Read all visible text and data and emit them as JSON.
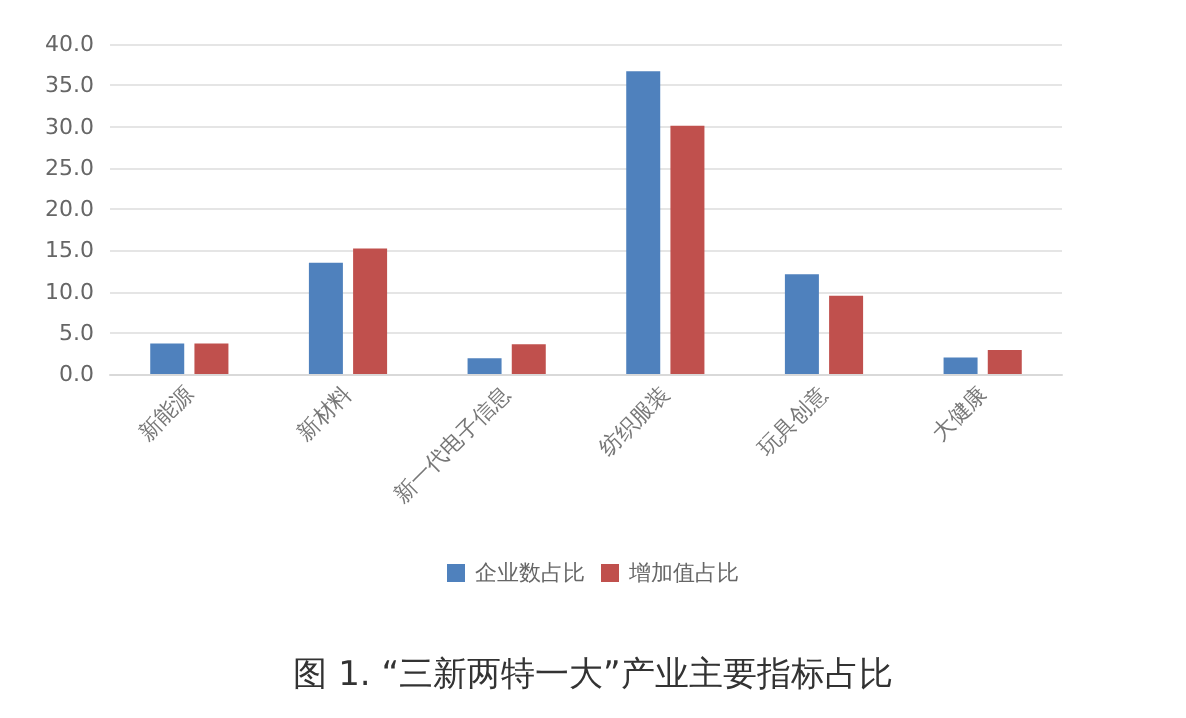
{
  "chart_data": {
    "type": "bar",
    "title": "图 1. “三新两特一大”产业主要指标占比",
    "categories": [
      "新能源",
      "新材料",
      "新一代电子信息",
      "纺织服装",
      "玩具创意",
      "大健康"
    ],
    "series": [
      {
        "name": "企业数占比",
        "color": "#4f81bd",
        "values": [
          3.7,
          13.5,
          1.9,
          36.7,
          12.1,
          2.0
        ]
      },
      {
        "name": "增加值占比",
        "color": "#c0504d",
        "values": [
          3.7,
          15.2,
          3.6,
          30.1,
          9.5,
          2.9
        ]
      }
    ],
    "ylim": [
      0,
      40
    ],
    "yticks": [
      {
        "value": 0,
        "label": "0.0"
      },
      {
        "value": 5,
        "label": "5.0"
      },
      {
        "value": 10,
        "label": "10.0"
      },
      {
        "value": 15,
        "label": "15.0"
      },
      {
        "value": 20,
        "label": "20.0"
      },
      {
        "value": 25,
        "label": "25.0"
      },
      {
        "value": 30,
        "label": "30.0"
      },
      {
        "value": 35,
        "label": "35.0"
      },
      {
        "value": 40,
        "label": "40.0"
      }
    ],
    "grid": "y",
    "legend": "bottom"
  }
}
